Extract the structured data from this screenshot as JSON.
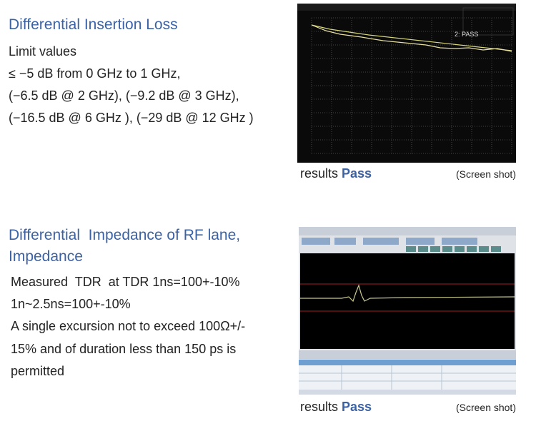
{
  "sections": [
    {
      "title": [
        "Differential Insertion Loss"
      ],
      "body_lines": [
        "Limit values",
        "≤ −5 dB from 0 GHz to 1 GHz,",
        "(−6.5 dB @ 2 GHz), (−9.2 dB @ 3 GHz),",
        "(−16.5 dB @ 6 GHz ), (−29 dB @ 12 GHz )"
      ],
      "screenshot": {
        "annotation": "2: PASS"
      },
      "result": {
        "label": "results",
        "status": "Pass"
      },
      "caption": "(Screen shot)"
    },
    {
      "title": [
        "Differential  Impedance of RF lane,",
        "Impedance"
      ],
      "body_lines": [
        "Measured  TDR  at TDR 1ns=100+-10%",
        "1n~2.5ns=100+-10%",
        "A single excursion not to exceed 100Ω+/-",
        "15% and of duration less than 150 ps is",
        "permitted"
      ],
      "result": {
        "label": "results",
        "status": "Pass"
      },
      "caption": "(Screen shot)"
    }
  ]
}
